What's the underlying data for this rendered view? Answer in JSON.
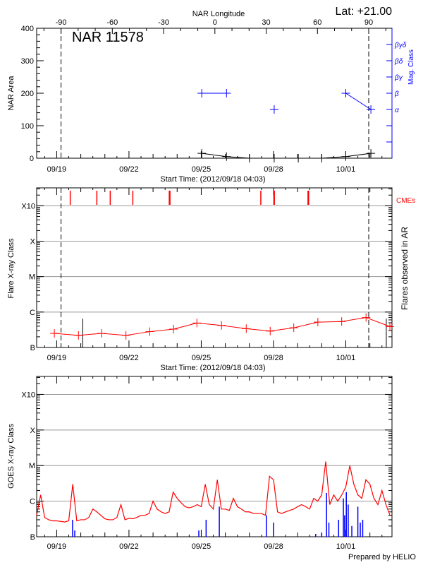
{
  "header": {
    "latitude_label": "Lat: +21.00",
    "region_label": "NAR 11578",
    "footer": "Prepared by HELIO"
  },
  "chart_data": [
    {
      "type": "line",
      "panel": "NAR area and magnetic class",
      "ylabel": "NAR Area",
      "ylim": [
        0,
        400
      ],
      "y_ticks": [
        0,
        100,
        200,
        300,
        400
      ],
      "xlabel": "Start Time: (2012/09/18 04:03)",
      "xlim": [
        "2012-09-18T04:03",
        "2012-10-02T22:00"
      ],
      "x_major_ticks": [
        "2012-09-19T00:00",
        "2012-09-22T00:00",
        "2012-09-25T00:00",
        "2012-09-28T00:00",
        "2012-10-01T00:00"
      ],
      "x_tick_labels": [
        "09/19",
        "09/22",
        "09/25",
        "09/28",
        "10/01"
      ],
      "top_axis": {
        "label": "NAR Longitude",
        "ticks": [
          -90,
          -60,
          -30,
          0,
          30,
          60,
          90
        ],
        "tick_labels": [
          "-90",
          "-60",
          "-30",
          "0",
          "30",
          "60",
          "90"
        ],
        "limb_dates": [
          "2012-09-19T04:20",
          "2012-10-01T22:50"
        ]
      },
      "right_axis": {
        "label": "Mag. Class",
        "classes": [
          "α",
          "β",
          "βγ",
          "βδ",
          "βγδ"
        ],
        "color": "#0000ff"
      },
      "series": [
        {
          "name": "NAR Area",
          "color": "#000000",
          "x": [
            "2012-09-25T00:30",
            "2012-09-26T01:10",
            "2012-09-27T00:00",
            "2012-09-28T00:40",
            "2012-09-29T00:40",
            "2012-09-30T00:00",
            "2012-10-01T00:00",
            "2012-10-02T01:00"
          ],
          "values": [
            15,
            5,
            0,
            0,
            0,
            0,
            5,
            15
          ]
        },
        {
          "name": "Mag. Class",
          "color": "#0000ff",
          "x": [
            "2012-09-25T00:30",
            "2012-09-26T01:10",
            "2012-09-28T00:40",
            "2012-10-01T00:00",
            "2012-10-02T01:00"
          ],
          "values": [
            "β",
            "β",
            "α",
            "β",
            "α"
          ],
          "connected": [
            [
              0,
              1
            ],
            [
              3,
              4
            ]
          ]
        }
      ],
      "limb_lines": "dashed",
      "grid": false
    },
    {
      "type": "line",
      "panel": "Flares observed in AR",
      "ylabel": "Flare X-ray Class",
      "right_label": "Flares observed in AR",
      "cme_label": "CMEs",
      "yscale": "log",
      "ylim": [
        1e-07,
        0.0032
      ],
      "y_ticks": [
        1e-07,
        1e-06,
        1e-05,
        0.0001,
        0.001
      ],
      "y_tick_labels": [
        "B",
        "C",
        "M",
        "X",
        "X10"
      ],
      "grid": true,
      "xlabel": "Start Time: (2012/09/18 04:03)",
      "xlim": [
        "2012-09-18T04:03",
        "2012-10-02T22:00"
      ],
      "x_major_ticks": [
        "2012-09-19T00:00",
        "2012-09-22T00:00",
        "2012-09-25T00:00",
        "2012-09-28T00:00",
        "2012-10-01T00:00"
      ],
      "x_tick_labels": [
        "09/19",
        "09/22",
        "09/25",
        "09/28",
        "10/01"
      ],
      "series": [
        {
          "name": "Flare X-ray Class",
          "color": "#ff0000",
          "x": [
            "2012-09-18T21:40",
            "2012-09-19T21:40",
            "2012-09-20T20:50",
            "2012-09-21T21:00",
            "2012-09-22T20:40",
            "2012-09-23T20:25",
            "2012-09-24T19:40",
            "2012-09-25T20:10",
            "2012-09-26T20:50",
            "2012-09-27T20:40",
            "2012-09-28T20:10",
            "2012-09-29T20:10",
            "2012-09-30T19:55",
            "2012-10-01T20:10",
            "2012-10-02T19:55"
          ],
          "values": [
            2.5e-07,
            2.2e-07,
            2.5e-07,
            2.2e-07,
            2.8e-07,
            3.3e-07,
            4.9e-07,
            4.2e-07,
            3.4e-07,
            2.9e-07,
            3.6e-07,
            5.2e-07,
            5.4e-07,
            7e-07,
            3.9e-07
          ]
        }
      ],
      "ar_flares": {
        "color": "#000000",
        "x": [
          "2012-09-20T02:00",
          "2012-10-02T16:20"
        ],
        "values": [
          6.5e-07,
          6.5e-07
        ]
      },
      "cmes": {
        "color": "#ff0000",
        "x": [
          "2012-09-19T13:30",
          "2012-09-20T16:00",
          "2012-09-21T05:20",
          "2012-09-22T03:50",
          "2012-09-23T16:10",
          "2012-09-23T16:50",
          "2012-09-27T11:20",
          "2012-09-28T00:20",
          "2012-09-28T00:50",
          "2012-09-29T10:20",
          "2012-09-29T11:00"
        ]
      },
      "limb_lines": "dashed"
    },
    {
      "type": "line",
      "panel": "GOES X-ray flux",
      "ylabel": "GOES X-ray Class",
      "yscale": "log",
      "ylim": [
        1e-07,
        0.0032
      ],
      "y_ticks": [
        1e-07,
        1e-06,
        1e-05,
        0.0001,
        0.001
      ],
      "y_tick_labels": [
        "B",
        "C",
        "M",
        "X",
        "X10"
      ],
      "grid": true,
      "xlim": [
        "2012-09-18T04:03",
        "2012-10-02T22:00"
      ],
      "x_major_ticks": [
        "2012-09-19T00:00",
        "2012-09-22T00:00",
        "2012-09-25T00:00",
        "2012-09-28T00:00",
        "2012-10-01T00:00"
      ],
      "x_tick_labels": [
        "09/19",
        "09/22",
        "09/25",
        "09/28",
        "10/01"
      ],
      "series": [
        {
          "color": "#ff0000",
          "x_start": "2012-09-18T04:00",
          "x_step_hours": 4,
          "values": [
            4e-07,
            1.5e-06,
            3.5e-07,
            3e-07,
            2.8e-07,
            2.8e-07,
            2.7e-07,
            2.6e-07,
            2.8e-07,
            3e-06,
            2.8e-07,
            3e-07,
            3e-07,
            3.5e-07,
            6e-07,
            5e-07,
            4e-07,
            3.2e-07,
            3e-07,
            3e-07,
            3.5e-07,
            8e-07,
            3e-07,
            3.3e-07,
            3.2e-07,
            3.5e-07,
            4e-07,
            4e-07,
            4.5e-07,
            1e-06,
            6e-07,
            5e-07,
            4.5e-07,
            5e-07,
            1.8e-06,
            1.2e-06,
            9e-07,
            7e-07,
            6.5e-07,
            7e-07,
            8e-07,
            7e-07,
            3e-06,
            8e-07,
            6e-07,
            4e-06,
            6e-07,
            6e-07,
            5.5e-07,
            1.2e-06,
            7e-07,
            6e-07,
            5e-07,
            5e-07,
            4.5e-07,
            4.5e-07,
            4.5e-07,
            4e-07,
            5e-06,
            4e-06,
            5e-07,
            4.5e-07,
            5e-07,
            5.5e-07,
            6e-07,
            7e-07,
            8e-07,
            7e-07,
            6e-07,
            1.2e-06,
            1e-06,
            1.5e-06,
            1.3e-05,
            8e-07,
            1.5e-06,
            1e-06,
            1.5e-06,
            2.5e-06,
            1e-05,
            3e-06,
            1.5e-06,
            1.2e-06,
            4e-06,
            3e-06,
            1.2e-06,
            8e-07,
            2e-06,
            8e-07,
            4e-07
          ]
        },
        {
          "color": "#0000ff",
          "style": "bars",
          "x": [
            "2012-09-19T15:50",
            "2012-09-19T18:00",
            "2012-09-24T21:35",
            "2012-09-25T04:50",
            "2012-09-25T18:00",
            "2012-09-27T16:50",
            "2012-09-28T00:00",
            "2012-09-29T18:00",
            "2012-09-30T00:00",
            "2012-09-30T04:50",
            "2012-09-30T07:10",
            "2012-09-30T16:50",
            "2012-09-30T21:35",
            "2012-09-30T22:50",
            "2012-10-01T00:30",
            "2012-10-01T02:25",
            "2012-10-01T06:00",
            "2012-10-01T12:00",
            "2012-10-01T14:25",
            "2012-10-01T16:50"
          ],
          "values": [
            3e-07,
            1.5e-07,
            1.5e-07,
            3e-07,
            7e-07,
            4e-07,
            2.5e-07,
            1.2e-07,
            1.3e-07,
            1.7e-06,
            2.5e-07,
            3e-07,
            1.2e-06,
            4e-07,
            1.8e-06,
            8e-07,
            2e-07,
            7e-07,
            2.5e-07,
            3e-07
          ]
        }
      ]
    }
  ]
}
